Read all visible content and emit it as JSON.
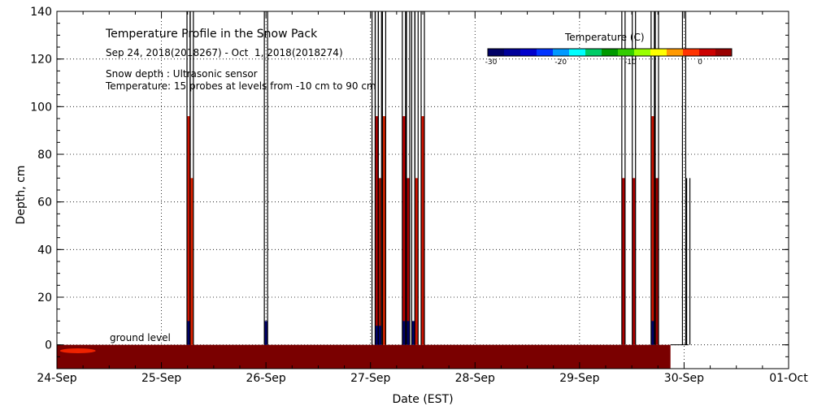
{
  "chart_data": {
    "type": "heatmap",
    "title": "Temperature Profile in the Snow Pack",
    "subtitle": "Sep 24, 2018(2018267) - Oct  1, 2018(2018274)",
    "notes": [
      "Snow depth : Ultrasonic sensor",
      "Temperature: 15 probes at levels from -10 cm to 90 cm"
    ],
    "xlabel": "Date (EST)",
    "ylabel": "Depth, cm",
    "ground_label": "ground level",
    "x_ticks": [
      "24-Sep",
      "25-Sep",
      "26-Sep",
      "27-Sep",
      "28-Sep",
      "29-Sep",
      "30-Sep",
      "01-Oct"
    ],
    "x_range_days": [
      0,
      7
    ],
    "ylim": [
      -10,
      140
    ],
    "y_ticks": [
      0,
      20,
      40,
      60,
      80,
      100,
      120,
      140
    ],
    "y_tick_labels": [
      "0",
      "20",
      "40",
      "60",
      "80",
      "100",
      "120",
      "140"
    ],
    "grid": true,
    "colorbar": {
      "title": "Temperature (C)",
      "placement": "top-right",
      "range": [
        -30,
        5
      ],
      "tick_values": [
        -30,
        -20,
        -10,
        0
      ],
      "tick_labels": [
        "-30",
        "-20",
        "-10",
        "0"
      ],
      "colors": [
        "#000066",
        "#000099",
        "#0000cc",
        "#0033ff",
        "#0099ff",
        "#00ffff",
        "#00cc66",
        "#009900",
        "#33cc00",
        "#99ff00",
        "#ffff00",
        "#ff9900",
        "#ff3300",
        "#cc0000",
        "#990000"
      ]
    },
    "ground_fill": {
      "from_day": 0.0,
      "to_day": 5.87,
      "depth_range": [
        -10,
        0
      ],
      "color": "#7a0000"
    },
    "spikes": [
      {
        "day": 1.26,
        "height": 140,
        "fill": 96,
        "fill_color": "#cc1100",
        "cold": 10
      },
      {
        "day": 1.29,
        "height": 140,
        "fill": 70,
        "fill_color": "#dd2200",
        "cold": 0
      },
      {
        "day": 2.0,
        "height": 140,
        "fill": 0,
        "fill_color": "#7a0000",
        "cold": 10
      },
      {
        "day": 3.03,
        "height": 140,
        "fill": 0,
        "fill_color": "#7a0000",
        "cold": 0
      },
      {
        "day": 3.06,
        "height": 140,
        "fill": 96,
        "fill_color": "#aa0000",
        "cold": 8
      },
      {
        "day": 3.09,
        "height": 140,
        "fill": 70,
        "fill_color": "#991100",
        "cold": 8
      },
      {
        "day": 3.13,
        "height": 140,
        "fill": 96,
        "fill_color": "#cc2200",
        "cold": 0
      },
      {
        "day": 3.32,
        "height": 140,
        "fill": 96,
        "fill_color": "#bb0000",
        "cold": 10
      },
      {
        "day": 3.36,
        "height": 140,
        "fill": 70,
        "fill_color": "#aa0000",
        "cold": 10
      },
      {
        "day": 3.41,
        "height": 140,
        "fill": 0,
        "fill_color": "#7a0000",
        "cold": 10
      },
      {
        "day": 3.44,
        "height": 140,
        "fill": 70,
        "fill_color": "#cc1100",
        "cold": 0
      },
      {
        "day": 3.5,
        "height": 140,
        "fill": 96,
        "fill_color": "#cc1100",
        "cold": 0
      },
      {
        "day": 5.42,
        "height": 140,
        "fill": 70,
        "fill_color": "#aa0000",
        "cold": 0
      },
      {
        "day": 5.52,
        "height": 140,
        "fill": 70,
        "fill_color": "#aa0000",
        "cold": 0
      },
      {
        "day": 5.7,
        "height": 140,
        "fill": 96,
        "fill_color": "#cc1100",
        "cold": 10
      },
      {
        "day": 5.74,
        "height": 140,
        "fill": 70,
        "fill_color": "#990000",
        "cold": 0
      },
      {
        "day": 6.0,
        "height": 140,
        "fill": 0,
        "fill_color": "#7a0000",
        "cold": 0
      },
      {
        "day": 6.04,
        "height": 70,
        "fill": 0,
        "fill_color": "#7a0000",
        "cold": 0
      }
    ]
  }
}
